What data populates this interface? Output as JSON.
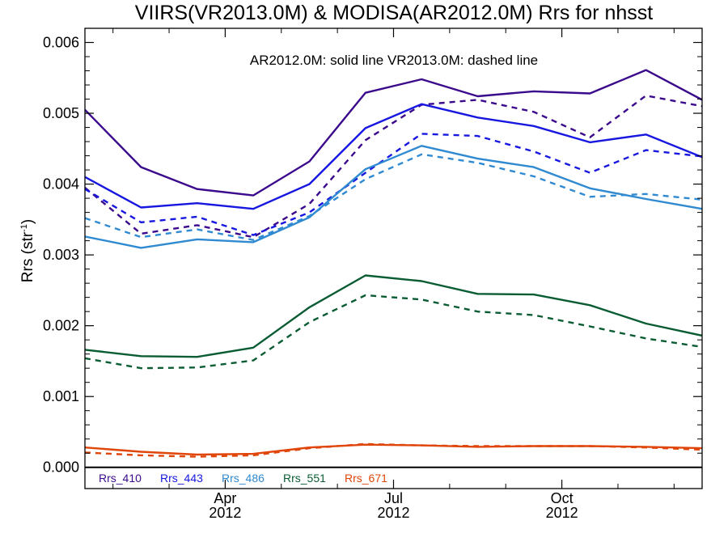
{
  "chart_data": {
    "type": "line",
    "title": "VIIRS(VR2013.0M) & MODISA(AR2012.0M)  Rrs for nhsst",
    "annotation": "AR2012.0M: solid line   VR2013.0M: dashed line",
    "ylabel": {
      "base": "Rrs (str",
      "sup": "-1",
      "close": ")"
    },
    "ylim": [
      -0.0003,
      0.0062
    ],
    "xlim": [
      0,
      11
    ],
    "y_ticks": [
      "0.000",
      "0.001",
      "0.002",
      "0.003",
      "0.004",
      "0.005",
      "0.006"
    ],
    "y_tick_values": [
      0,
      0.001,
      0.002,
      0.003,
      0.004,
      0.005,
      0.006
    ],
    "x_ticks": [
      {
        "x": 2.5,
        "month": "Apr",
        "year": "2012"
      },
      {
        "x": 5.5,
        "month": "Jul",
        "year": "2012"
      },
      {
        "x": 8.5,
        "month": "Oct",
        "year": "2012"
      }
    ],
    "x": [
      0,
      1,
      2,
      3,
      4,
      5,
      6,
      7,
      8,
      9,
      10,
      11
    ],
    "zero_line": true,
    "legend_position": "bottom-left",
    "series": [
      {
        "name": "Rrs_410",
        "color": "#3b0a8c",
        "solid": [
          0.00505,
          0.00424,
          0.00393,
          0.00384,
          0.00432,
          0.00529,
          0.00548,
          0.00524,
          0.00531,
          0.00528,
          0.00561,
          0.00519
        ],
        "dashed": [
          0.00395,
          0.0033,
          0.00342,
          0.00325,
          0.00372,
          0.00462,
          0.00512,
          0.00519,
          0.00502,
          0.00466,
          0.00525,
          0.0051
        ]
      },
      {
        "name": "Rrs_443",
        "color": "#1717e0",
        "solid": [
          0.0041,
          0.00367,
          0.00373,
          0.00365,
          0.004,
          0.00479,
          0.00513,
          0.00494,
          0.00482,
          0.00459,
          0.0047,
          0.00438
        ],
        "dashed": [
          0.00393,
          0.00346,
          0.00354,
          0.00328,
          0.0036,
          0.00416,
          0.00471,
          0.00468,
          0.00446,
          0.00416,
          0.00448,
          0.00439
        ]
      },
      {
        "name": "Rrs_486",
        "color": "#2f8ad1",
        "solid": [
          0.00326,
          0.0031,
          0.00322,
          0.00318,
          0.00353,
          0.00421,
          0.00454,
          0.00436,
          0.00424,
          0.00394,
          0.00379,
          0.00365
        ],
        "dashed": [
          0.00352,
          0.00325,
          0.00336,
          0.00321,
          0.00355,
          0.00407,
          0.00442,
          0.0043,
          0.00411,
          0.00382,
          0.00386,
          0.00378
        ]
      },
      {
        "name": "Rrs_551",
        "color": "#0a5c33",
        "solid": [
          0.00166,
          0.00157,
          0.00156,
          0.00169,
          0.00226,
          0.00271,
          0.00263,
          0.00245,
          0.00244,
          0.00229,
          0.00203,
          0.00186
        ],
        "dashed": [
          0.00154,
          0.0014,
          0.00141,
          0.00151,
          0.00205,
          0.00243,
          0.00237,
          0.0022,
          0.00215,
          0.00199,
          0.00182,
          0.0017
        ]
      },
      {
        "name": "Rrs_671",
        "color": "#e0450a",
        "solid": [
          0.00028,
          0.00022,
          0.00018,
          0.00019,
          0.00028,
          0.00032,
          0.00031,
          0.00029,
          0.0003,
          0.0003,
          0.00029,
          0.00027
        ],
        "dashed": [
          0.00021,
          0.00017,
          0.00015,
          0.00017,
          0.00027,
          0.00033,
          0.00031,
          0.0003,
          0.0003,
          0.0003,
          0.00028,
          0.00025
        ]
      }
    ]
  }
}
